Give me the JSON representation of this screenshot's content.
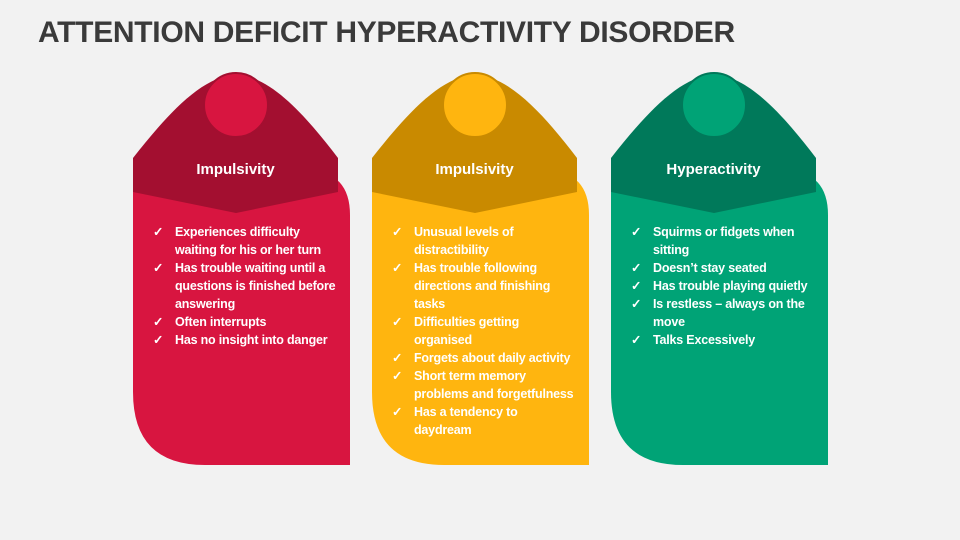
{
  "title": "ATTENTION DEFICIT HYPERACTIVITY DISORDER",
  "cards": [
    {
      "heading": "Impulsivity",
      "body_color": "#D81540",
      "header_color": "#A30F30",
      "icon": "check-icon",
      "items": [
        "Experiences difficulty waiting for his or her turn",
        "Has trouble waiting until a questions is finished before answering",
        "Often interrupts",
        "Has no insight into danger"
      ]
    },
    {
      "heading": "Impulsivity",
      "body_color": "#FFB50F",
      "header_color": "#C98A00",
      "icon": "check-icon",
      "items": [
        "Unusual levels of distractibility",
        "Has trouble following directions and finishing tasks",
        "Difficulties getting organised",
        "Forgets about daily activity",
        "Short term memory problems and forgetfulness",
        "Has a tendency to daydream"
      ]
    },
    {
      "heading": "Hyperactivity",
      "body_color": "#00A376",
      "header_color": "#00795A",
      "icon": "check-icon",
      "items": [
        "Squirms or fidgets when sitting",
        "Doesn’t stay seated",
        "Has trouble playing quietly",
        "Is restless – always on the move",
        "Talks Excessively"
      ]
    }
  ]
}
